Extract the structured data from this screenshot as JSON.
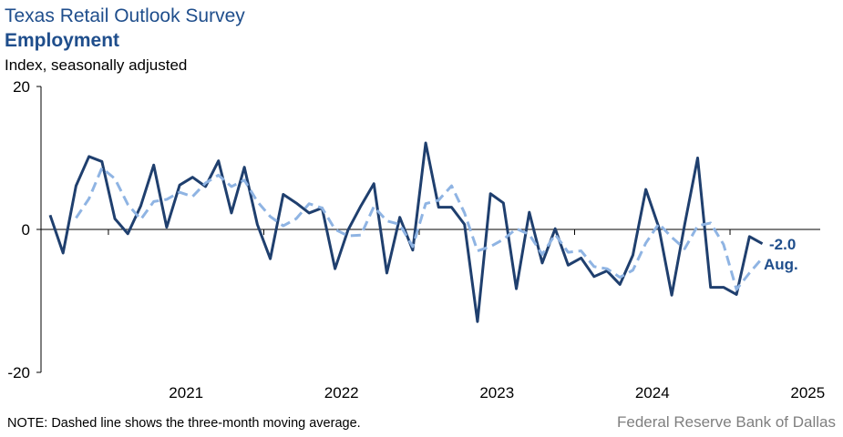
{
  "header": {
    "title": "Texas Retail Outlook Survey",
    "subtitle": "Employment",
    "ylabel": "Index, seasonally adjusted"
  },
  "footer": {
    "note": "NOTE: Dashed line shows the three-month moving average.",
    "source": "Federal Reserve Bank of Dallas"
  },
  "colors": {
    "primary": "#1f3f6e",
    "moving_average": "#8fb4e3",
    "text_blue": "#1f4e8c",
    "source_gray": "#7f7f7f"
  },
  "chart_data": {
    "type": "line",
    "title": "Texas Retail Outlook Survey",
    "subtitle": "Employment",
    "ylabel": "Index, seasonally adjusted",
    "xlabel": "",
    "ylim": [
      -20,
      20
    ],
    "yticks": [
      {
        "value": 20,
        "label": "20"
      },
      {
        "value": 0,
        "label": "0"
      },
      {
        "value": -20,
        "label": "-20"
      }
    ],
    "year_ticks": [
      "2021",
      "2022",
      "2023",
      "2024",
      "2025"
    ],
    "x_start": "2020-08",
    "x_end": "2025-08",
    "grid": false,
    "series": [
      {
        "style": "solid",
        "values": [
          2.0,
          -3.3,
          6.1,
          10.2,
          9.5,
          1.5,
          -0.6,
          3.3,
          9.0,
          0.3,
          6.2,
          7.3,
          6.0,
          9.6,
          2.3,
          8.7,
          0.7,
          -4.1,
          4.9,
          3.7,
          2.3,
          3.0,
          -5.5,
          -0.1,
          3.3,
          6.4,
          -6.1,
          1.7,
          -2.9,
          12.1,
          3.1,
          3.1,
          0.7,
          -12.9,
          5.0,
          3.7,
          -8.3,
          2.4,
          -4.7,
          0.1,
          -5.0,
          -4.0,
          -6.6,
          -5.8,
          -7.7,
          -3.6,
          5.6,
          0.3,
          -9.2,
          0.7,
          10.0,
          -8.1,
          -8.1,
          -9.1,
          -1.0,
          -2.0
        ]
      },
      {
        "style": "dashed",
        "values": [
          null,
          null,
          1.6,
          4.3,
          8.6,
          7.1,
          3.5,
          1.4,
          3.9,
          4.2,
          5.2,
          4.6,
          6.5,
          7.6,
          6.0,
          6.9,
          3.9,
          1.8,
          0.5,
          1.5,
          3.6,
          3.0,
          0.0,
          -0.9,
          -0.8,
          3.2,
          1.2,
          0.7,
          -2.4,
          3.6,
          4.1,
          6.1,
          2.3,
          -3.0,
          -2.4,
          -1.4,
          0.1,
          -0.7,
          -3.5,
          -0.7,
          -3.2,
          -3.0,
          -5.2,
          -5.5,
          -6.7,
          -5.7,
          -1.9,
          0.8,
          -1.1,
          -2.7,
          0.5,
          0.9,
          -2.1,
          -8.4,
          -6.1,
          -4.0
        ]
      }
    ],
    "end_label": {
      "value": "-2.0",
      "period": "Aug."
    }
  }
}
